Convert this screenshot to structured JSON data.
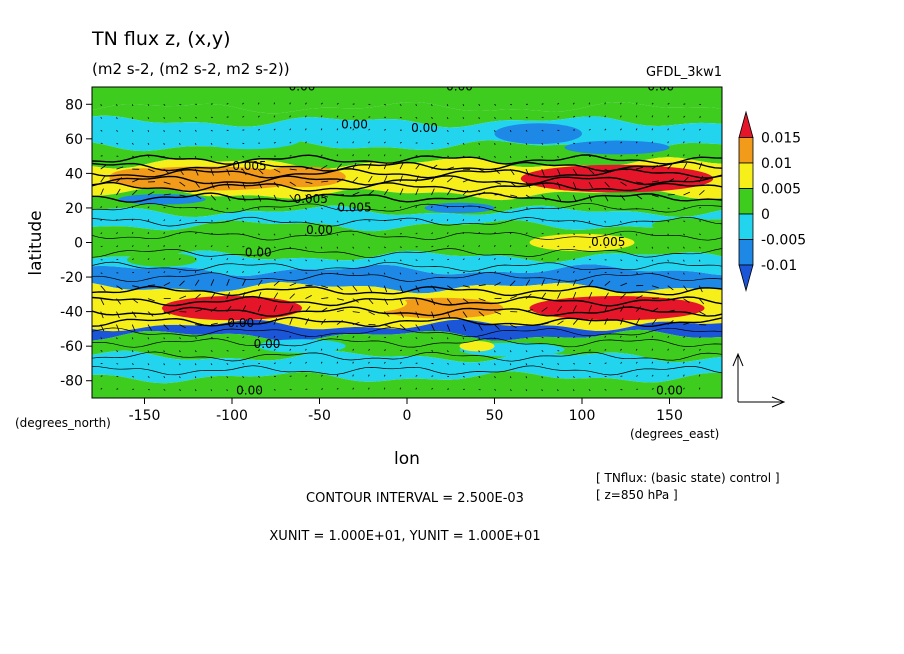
{
  "chart_data": {
    "type": "heatmap",
    "title": "TN flux z, (x,y)",
    "subtitle": "(m2 s-2, (m2 s-2, m2 s-2))",
    "dataset": "GFDL_3kw1",
    "xlabel": "lon",
    "ylabel": "latitude",
    "xunits": "(degrees_east)",
    "yunits": "(degrees_north)",
    "xlim": [
      -180,
      180
    ],
    "ylim": [
      -90,
      90
    ],
    "xticks": [
      -150,
      -100,
      -50,
      0,
      50,
      100,
      150
    ],
    "yticks": [
      -80,
      -60,
      -40,
      -20,
      0,
      20,
      40,
      60,
      80
    ],
    "colorbar": {
      "labels": [
        "0.015",
        "0.01",
        "0.005",
        "0",
        "-0.005",
        "-0.01"
      ],
      "levels": [
        0.015,
        0.01,
        0.005,
        0,
        -0.005,
        -0.01
      ],
      "colors": [
        "#e5162a",
        "#f29a1a",
        "#f6ef1a",
        "#3ecc1f",
        "#22d4ee",
        "#1e88e6",
        "#1b55d8"
      ]
    },
    "contour_labels": [
      "0.00",
      "0.005"
    ],
    "contour_interval": "CONTOUR INTERVAL = 2.500E-03",
    "units_note": "XUNIT = 1.000E+01, YUNIT = 1.000E+01",
    "notes": [
      "[ TNflux: (basic state) control ]",
      "[ z=850 hPa ]"
    ],
    "grid": false,
    "legend_position": "right"
  }
}
